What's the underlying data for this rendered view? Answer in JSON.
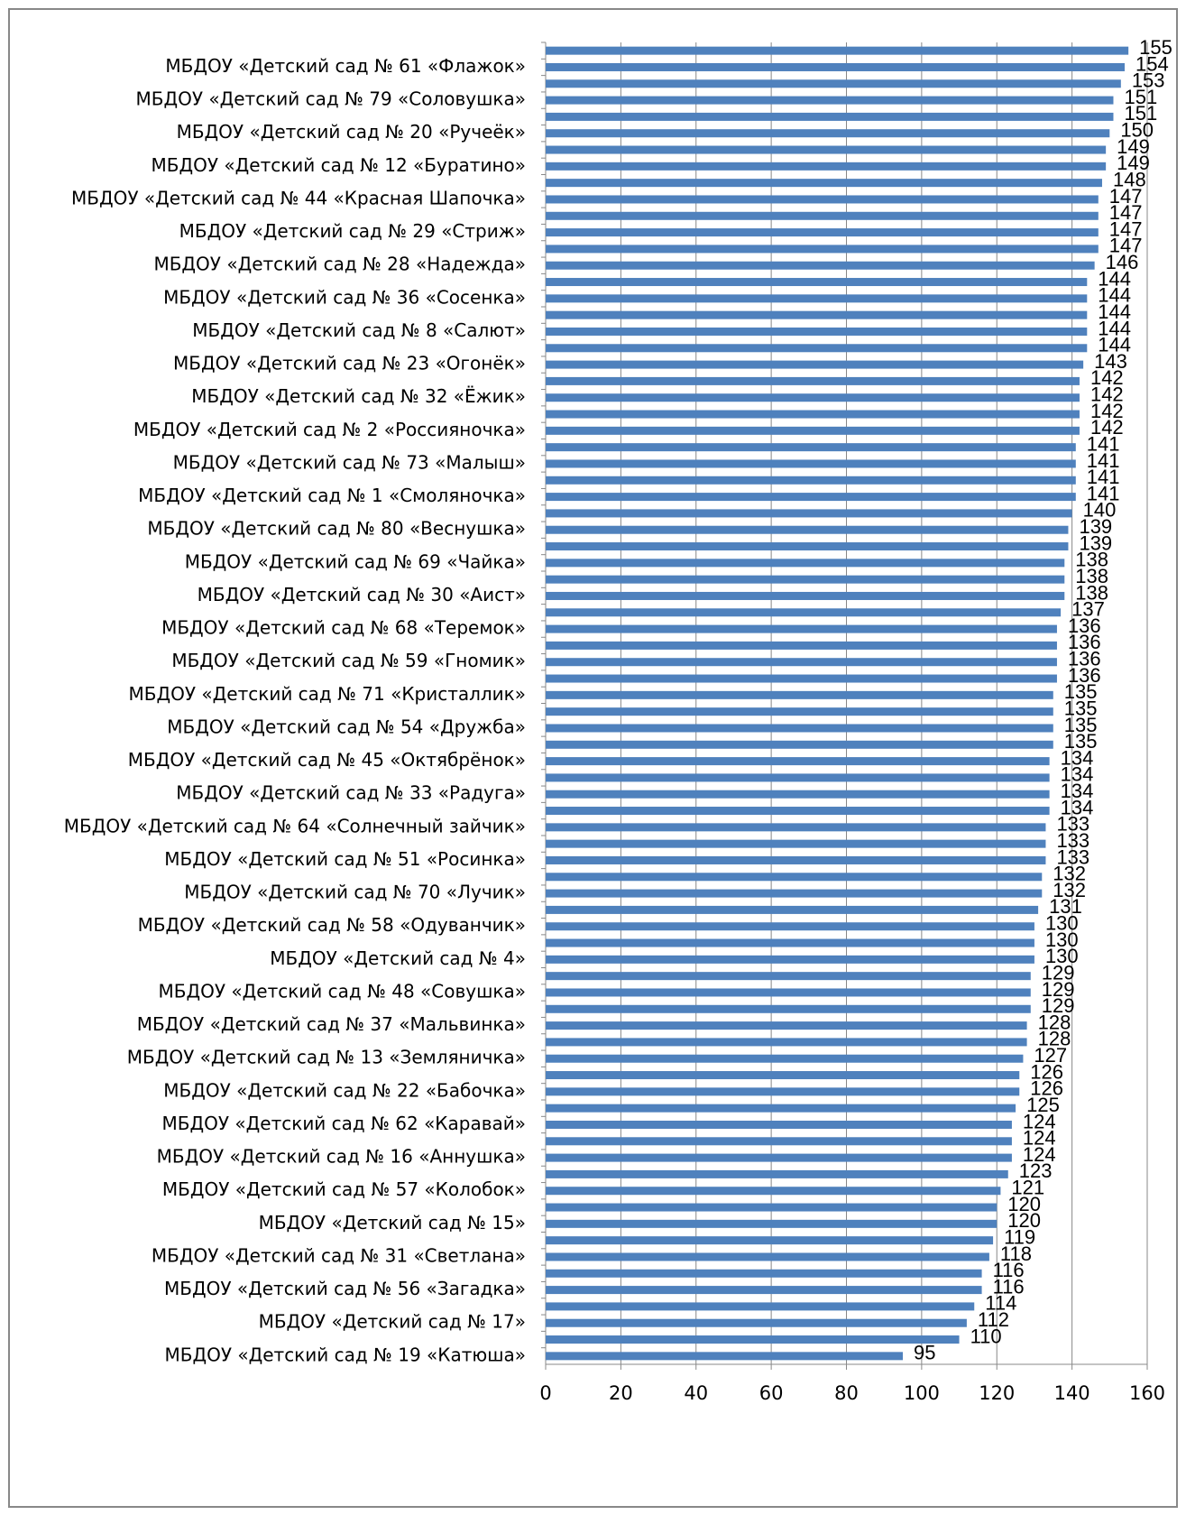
{
  "chart_data": {
    "type": "bar",
    "orientation": "horizontal",
    "color": "#4f81bd",
    "grid": true,
    "categories": [
      null,
      "МБДОУ «Детский сад № 61 «Флажок»",
      null,
      "МБДОУ «Детский сад № 79 «Соловушка»",
      null,
      "МБДОУ «Детский сад № 20 «Ручеёк»",
      null,
      "МБДОУ «Детский сад № 12 «Буратино»",
      null,
      "МБДОУ «Детский сад № 44 «Красная Шапочка»",
      null,
      "МБДОУ «Детский сад № 29 «Стриж»",
      null,
      "МБДОУ «Детский сад № 28 «Надежда»",
      null,
      "МБДОУ «Детский сад № 36 «Сосенка»",
      null,
      "МБДОУ «Детский сад № 8 «Салют»",
      null,
      "МБДОУ «Детский сад № 23 «Огонёк»",
      null,
      "МБДОУ «Детский сад № 32 «Ёжик»",
      null,
      "МБДОУ «Детский сад № 2 «Россияночка»",
      null,
      "МБДОУ «Детский сад № 73 «Малыш»",
      null,
      "МБДОУ «Детский сад № 1 «Смоляночка»",
      null,
      "МБДОУ «Детский сад № 80 «Веснушка»",
      null,
      "МБДОУ «Детский сад № 69 «Чайка»",
      null,
      "МБДОУ «Детский сад № 30 «Аист»",
      null,
      "МБДОУ «Детский сад № 68 «Теремок»",
      null,
      "МБДОУ «Детский сад № 59 «Гномик»",
      null,
      "МБДОУ «Детский сад № 71 «Кристаллик»",
      null,
      "МБДОУ «Детский сад № 54 «Дружба»",
      null,
      "МБДОУ «Детский сад № 45 «Октябрёнок»",
      null,
      "МБДОУ «Детский сад № 33 «Радуга»",
      null,
      "МБДОУ «Детский сад № 64 «Солнечный зайчик»",
      null,
      "МБДОУ «Детский сад № 51 «Росинка»",
      null,
      "МБДОУ «Детский сад № 70 «Лучик»",
      null,
      "МБДОУ «Детский сад № 58 «Одуванчик»",
      null,
      "МБДОУ «Детский сад № 4»",
      null,
      "МБДОУ «Детский сад № 48 «Совушка»",
      null,
      "МБДОУ «Детский сад № 37 «Мальвинка»",
      null,
      "МБДОУ «Детский сад № 13 «Земляничка»",
      null,
      "МБДОУ «Детский сад № 22 «Бабочка»",
      null,
      "МБДОУ «Детский сад № 62 «Каравай»",
      null,
      "МБДОУ «Детский сад № 16 «Аннушка»",
      null,
      "МБДОУ «Детский сад № 57 «Колобок»",
      null,
      "МБДОУ «Детский сад № 15»",
      null,
      "МБДОУ «Детский сад № 31 «Светлана»",
      null,
      "МБДОУ «Детский сад № 56 «Загадка»",
      null,
      "МБДОУ «Детский сад № 17»",
      null,
      "МБДОУ «Детский сад № 19 «Катюша»"
    ],
    "values": [
      155,
      154,
      153,
      151,
      151,
      150,
      149,
      149,
      148,
      147,
      147,
      147,
      147,
      146,
      144,
      144,
      144,
      144,
      144,
      143,
      142,
      142,
      142,
      142,
      141,
      141,
      141,
      141,
      140,
      139,
      139,
      138,
      138,
      138,
      137,
      136,
      136,
      136,
      136,
      135,
      135,
      135,
      135,
      134,
      134,
      134,
      134,
      133,
      133,
      133,
      132,
      132,
      131,
      130,
      130,
      130,
      129,
      129,
      129,
      128,
      128,
      127,
      126,
      126,
      125,
      124,
      124,
      124,
      123,
      121,
      120,
      120,
      119,
      118,
      116,
      116,
      114,
      112,
      110,
      95
    ],
    "xlim": [
      0,
      160
    ],
    "xticks": [
      0,
      20,
      40,
      60,
      80,
      100,
      120,
      140,
      160
    ]
  }
}
